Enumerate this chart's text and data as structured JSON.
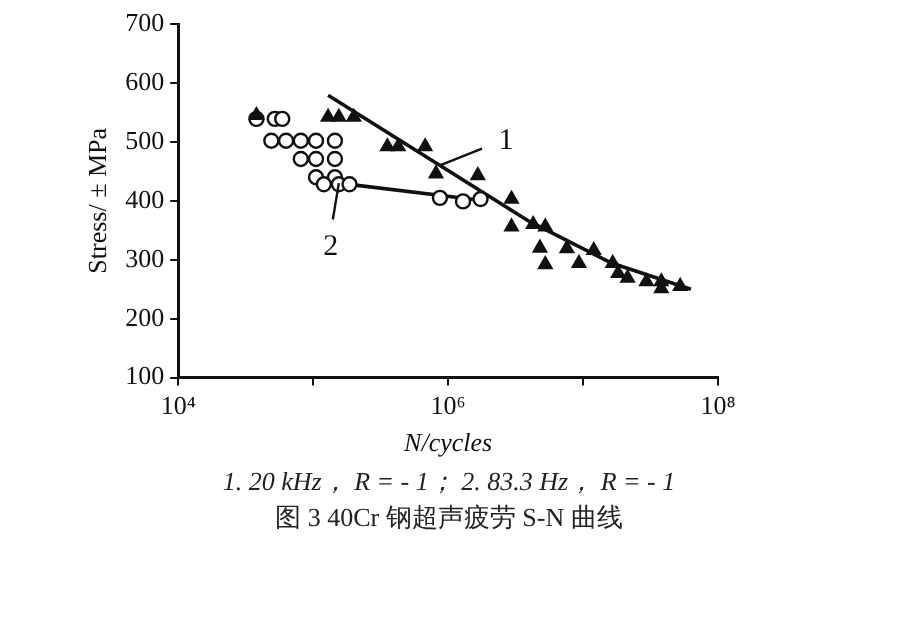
{
  "chart_data": {
    "type": "scatter",
    "xlabel": "N/cycles",
    "ylabel": "Stress/ ± MPa",
    "log": "x",
    "grid": false,
    "legend": false,
    "xlim": [
      10000,
      100000000
    ],
    "xticks": [
      {
        "value": 10000,
        "label": "10⁴"
      },
      {
        "value": 100000,
        "label": null
      },
      {
        "value": 1000000,
        "label": "10⁶"
      },
      {
        "value": 10000000,
        "label": null
      },
      {
        "value": 100000000,
        "label": "10⁸"
      }
    ],
    "ylim": [
      100,
      700
    ],
    "yticks": [
      100,
      200,
      300,
      400,
      500,
      600,
      700
    ],
    "series": [
      {
        "marker": "triangle",
        "color": "#111111",
        "x": [
          38000,
          129000,
          155000,
          200000,
          355000,
          427000,
          676000,
          813000,
          1660000,
          2950000,
          2950000,
          4270000,
          5250000,
          4790000,
          5250000,
          7590000,
          9330000,
          12000000,
          16600000,
          18200000,
          21400000,
          29500000,
          38000000,
          38000000,
          52500000
        ],
        "values": [
          545,
          542,
          542,
          542,
          492,
          492,
          492,
          446,
          443,
          403,
          356,
          360,
          356,
          320,
          292,
          319,
          294,
          316,
          294,
          277,
          269,
          263,
          263,
          251,
          255
        ]
      },
      {
        "marker": "circle",
        "color": "#111111",
        "x": [
          38000,
          52000,
          59000,
          49000,
          63000,
          81000,
          105000,
          145000,
          81000,
          105000,
          145000,
          105000,
          145000,
          120000,
          155000,
          186000,
          870000,
          1290000,
          1740000
        ],
        "values": [
          539,
          539,
          539,
          502,
          502,
          502,
          502,
          502,
          471,
          471,
          471,
          440,
          440,
          428,
          428,
          428,
          405,
          399,
          403
        ]
      },
      {
        "type": "line",
        "marker": "none",
        "color": "#111111",
        "x": [
          129000,
          4000000,
          16000000,
          63000000
        ],
        "values": [
          579,
          365,
          295,
          250
        ]
      },
      {
        "type": "line",
        "marker": "none",
        "color": "#111111",
        "x": [
          155000,
          1740000
        ],
        "values": [
          430,
          401
        ]
      }
    ],
    "annotations": [
      {
        "text": "1",
        "x": 870000,
        "y": 460
      },
      {
        "text": "2",
        "x": 155000,
        "y": 430
      },
      "1. 20 kHz， R = - 1； 2. 83.3 Hz， R = - 1",
      "图 3   40Cr 钢超声疲劳 S-N 曲线"
    ]
  }
}
